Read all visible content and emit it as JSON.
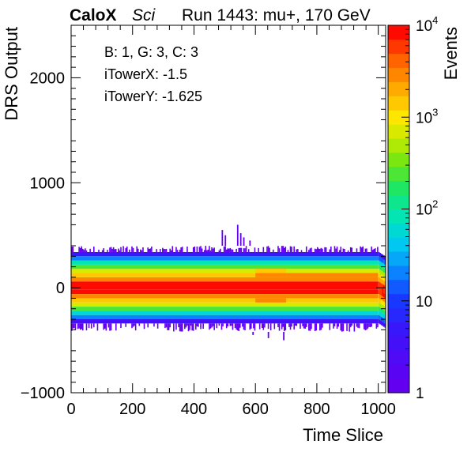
{
  "header": {
    "experiment": "CaloX",
    "tag": "Sci",
    "run_info": "Run 1443: mu+, 170 GeV"
  },
  "info_box": {
    "line1": "B: 1, G: 3, C: 3",
    "line2": "iTowerX: -1.5",
    "line3": "iTowerY: -1.625"
  },
  "chart_data": {
    "type": "heatmap",
    "title": "",
    "xlabel": "Time Slice",
    "ylabel": "DRS Output",
    "zlabel": "Events",
    "xlim": [
      0,
      1024
    ],
    "ylim": [
      -1000,
      2500
    ],
    "zlim": [
      1,
      10000
    ],
    "z_scale": "log",
    "x_ticks": [
      0,
      200,
      400,
      600,
      800,
      1000
    ],
    "x_tick_labels": [
      "0",
      "200",
      "400",
      "600",
      "800",
      "1000"
    ],
    "y_ticks": [
      -1000,
      0,
      1000,
      2000
    ],
    "y_tick_labels": [
      "−1000",
      "0",
      "1000",
      "2000"
    ],
    "z_ticks": [
      1,
      10,
      100,
      1000,
      10000
    ],
    "z_tick_labels": [
      {
        "base": "1",
        "exp": ""
      },
      {
        "base": "10",
        "exp": ""
      },
      {
        "base": "10",
        "exp": "2"
      },
      {
        "base": "10",
        "exp": "3"
      },
      {
        "base": "10",
        "exp": "4"
      }
    ],
    "band_profile": [
      {
        "y": [
          -20,
          20
        ],
        "events": 9000
      },
      {
        "y": [
          20,
          60
        ],
        "events": 8500
      },
      {
        "y": [
          -60,
          -20
        ],
        "events": 8500
      },
      {
        "y": [
          60,
          100
        ],
        "events": 3000
      },
      {
        "y": [
          -100,
          -60
        ],
        "events": 3000
      },
      {
        "y": [
          100,
          140
        ],
        "events": 1600
      },
      {
        "y": [
          -140,
          -100
        ],
        "events": 1500
      },
      {
        "y": [
          140,
          180
        ],
        "events": 700
      },
      {
        "y": [
          -180,
          -140
        ],
        "events": 600
      },
      {
        "y": [
          180,
          220
        ],
        "events": 250
      },
      {
        "y": [
          -220,
          -180
        ],
        "events": 220
      },
      {
        "y": [
          220,
          260
        ],
        "events": 80
      },
      {
        "y": [
          -260,
          -220
        ],
        "events": 70
      },
      {
        "y": [
          260,
          300
        ],
        "events": 20
      },
      {
        "y": [
          -300,
          -260
        ],
        "events": 20
      },
      {
        "y": [
          300,
          340
        ],
        "events": 5
      },
      {
        "y": [
          -340,
          -300
        ],
        "events": 4
      },
      {
        "y": [
          340,
          400
        ],
        "events": 1
      },
      {
        "y": [
          -420,
          -340
        ],
        "events": 1
      }
    ],
    "features": {
      "pulse_time_range": [
        600,
        700
      ],
      "pulse_time_range_late": [
        700,
        1000
      ],
      "end_columns_start": 1000,
      "outliers_upper": [
        {
          "x": 490,
          "y": 550
        },
        {
          "x": 500,
          "y": 500
        },
        {
          "x": 540,
          "y": 600
        },
        {
          "x": 550,
          "y": 520
        },
        {
          "x": 560,
          "y": 480
        },
        {
          "x": 580,
          "y": 450
        }
      ],
      "outliers_lower": [
        {
          "x": 640,
          "y": -480
        },
        {
          "x": 690,
          "y": -500
        },
        {
          "x": 590,
          "y": -450
        }
      ]
    }
  }
}
